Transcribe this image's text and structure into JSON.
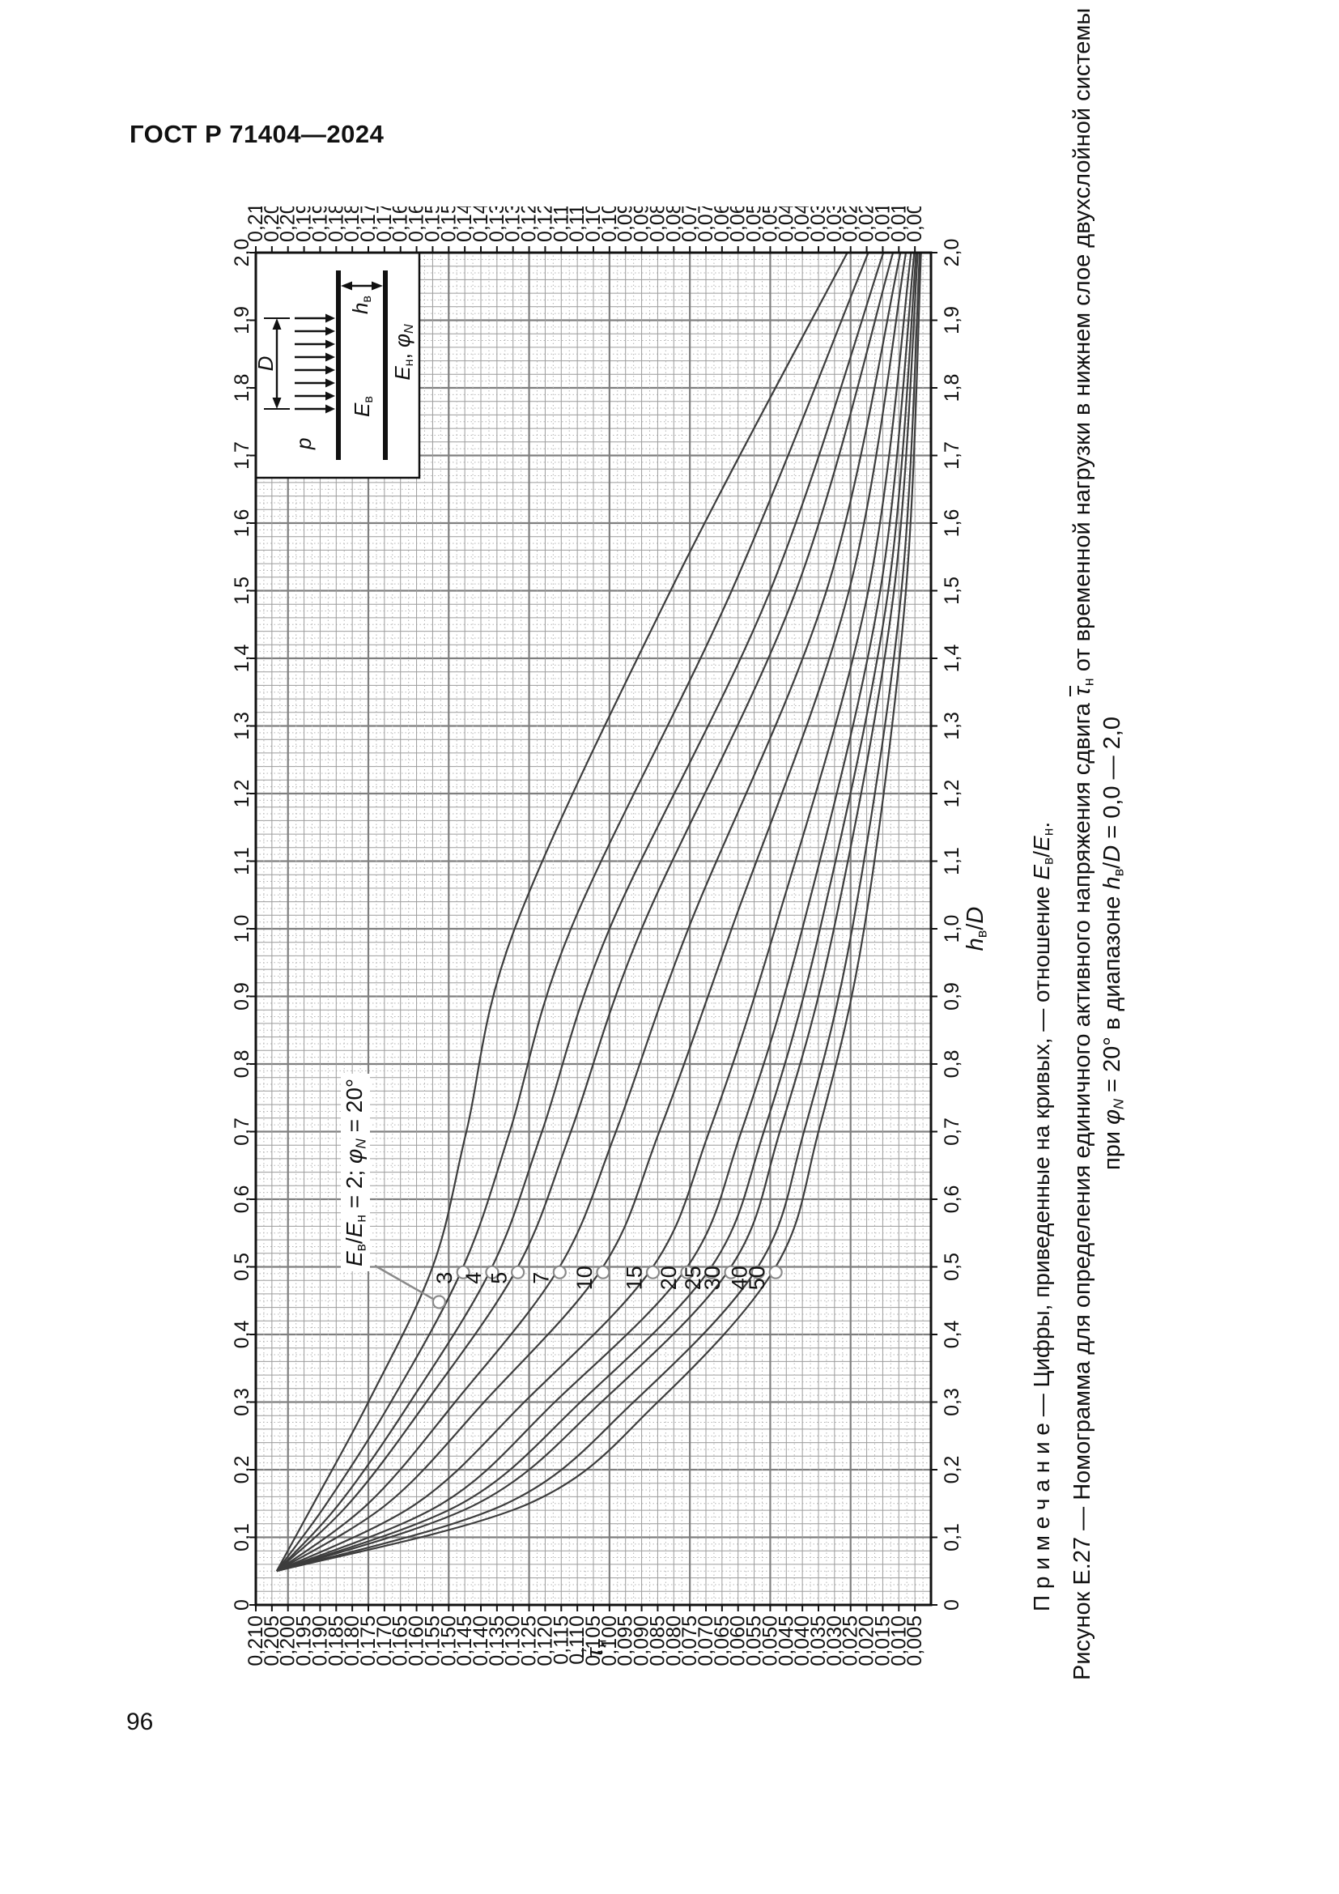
{
  "page": {
    "header": "ГОСТ Р 71404—2024",
    "page_number": "96"
  },
  "chart_data": {
    "type": "line",
    "title": "Рисунок Е.27 — Номограмма для определения единичного активного напряжения сдвига в нижнем слое двухслойной системы",
    "orientation_on_page": "rotated 90deg counterclockwise",
    "x_axis": {
      "label": "hв/D",
      "range": [
        0,
        2.0
      ],
      "tick_step": 0.1,
      "tick_labels": [
        "0",
        "0,1",
        "0,2",
        "0,3",
        "0,4",
        "0,5",
        "0,6",
        "0,7",
        "0,8",
        "0,9",
        "1,0",
        "1,1",
        "1,2",
        "1,3",
        "1,4",
        "1,5",
        "1,6",
        "1,7",
        "1,8",
        "1,9",
        "2,0"
      ],
      "title_segments": [
        {
          "t": "h",
          "i": true
        },
        {
          "t": "в",
          "s": true
        },
        {
          "t": "/"
        },
        {
          "t": "D",
          "i": true
        }
      ]
    },
    "y_axis": {
      "label": "τ̄н",
      "range": [
        0,
        0.21
      ],
      "tick_step": 0.005,
      "tick_min": 0.005,
      "tick_max": 0.21,
      "title_segments": [
        {
          "t": "τ",
          "i": true,
          "o": true
        },
        {
          "t": "н",
          "s": true
        }
      ]
    },
    "legend_note": "Цифры, приведенные на кривых, — отношение Eв/Eн",
    "h_samples": [
      0.05,
      0.15,
      0.3,
      0.5,
      0.7,
      1.0,
      1.5,
      2.0
    ],
    "series": [
      {
        "name": "2",
        "labeled": false,
        "values": [
          0.2035,
          0.192,
          0.175,
          0.155,
          0.1445,
          0.1295,
          0.081,
          0.026
        ]
      },
      {
        "name": "3",
        "labeled": true,
        "values": [
          0.2035,
          0.188,
          0.168,
          0.1455,
          0.131,
          0.112,
          0.062,
          0.0195
        ]
      },
      {
        "name": "4",
        "labeled": true,
        "values": [
          0.2035,
          0.184,
          0.162,
          0.1365,
          0.121,
          0.1,
          0.05,
          0.0148
        ]
      },
      {
        "name": "5",
        "labeled": true,
        "values": [
          0.2035,
          0.181,
          0.157,
          0.1285,
          0.112,
          0.09,
          0.042,
          0.0118
        ]
      },
      {
        "name": "7",
        "labeled": true,
        "values": [
          0.2035,
          0.175,
          0.148,
          0.1155,
          0.098,
          0.0755,
          0.0325,
          0.0095
        ]
      },
      {
        "name": "10",
        "labeled": true,
        "values": [
          0.2035,
          0.169,
          0.139,
          0.102,
          0.0845,
          0.062,
          0.0255,
          0.0078
        ]
      },
      {
        "name": "15",
        "labeled": true,
        "values": [
          0.2035,
          0.16,
          0.1265,
          0.0865,
          0.069,
          0.0485,
          0.0195,
          0.0062
        ]
      },
      {
        "name": "20",
        "labeled": true,
        "values": [
          0.2035,
          0.152,
          0.117,
          0.0758,
          0.059,
          0.04,
          0.0158,
          0.0052
        ]
      },
      {
        "name": "25",
        "labeled": true,
        "values": [
          0.2035,
          0.146,
          0.109,
          0.0683,
          0.052,
          0.0345,
          0.0133,
          0.0046
        ]
      },
      {
        "name": "30",
        "labeled": true,
        "values": [
          0.2035,
          0.141,
          0.1025,
          0.0622,
          0.047,
          0.0302,
          0.0115,
          0.0041
        ]
      },
      {
        "name": "40",
        "labeled": true,
        "values": [
          0.2035,
          0.132,
          0.0925,
          0.0538,
          0.0395,
          0.0245,
          0.0092,
          0.0035
        ]
      },
      {
        "name": "50",
        "labeled": true,
        "values": [
          0.2035,
          0.125,
          0.085,
          0.0483,
          0.035,
          0.0208,
          0.0078,
          0.0031
        ]
      }
    ],
    "marker_h": 0.492,
    "annotation": {
      "text": "Eв/Eн = 2; φN = 20°",
      "segments": [
        {
          "t": "E",
          "i": true
        },
        {
          "t": "в",
          "s": true
        },
        {
          "t": "/"
        },
        {
          "t": "E",
          "i": true
        },
        {
          "t": "н",
          "s": true
        },
        {
          "t": " = 2; "
        },
        {
          "t": "φ",
          "i": true
        },
        {
          "t": "N",
          "i": true,
          "s": true
        },
        {
          "t": " = 20°"
        }
      ],
      "target": {
        "h": 0.448,
        "tau": 0.153
      }
    },
    "note_segments": [
      {
        "t": "П р и м е ч а н и е — Цифры, приведенные на кривых, — отношение "
      },
      {
        "t": "E",
        "i": true
      },
      {
        "t": "в",
        "s": true
      },
      {
        "t": "/"
      },
      {
        "t": "E",
        "i": true
      },
      {
        "t": "н",
        "s": true
      },
      {
        "t": "."
      }
    ],
    "caption_line1_segments": [
      {
        "t": "Рисунок Е.27 — Номограмма для определения единичного активного напряжения сдвига "
      },
      {
        "t": "τ",
        "i": true,
        "o": true
      },
      {
        "t": "н",
        "s": true
      },
      {
        "t": " от временной нагрузки в нижнем слое двухслойной системы"
      }
    ],
    "caption_line2_segments": [
      {
        "t": "при "
      },
      {
        "t": "φ",
        "i": true
      },
      {
        "t": "N",
        "i": true,
        "s": true
      },
      {
        "t": " = 20° в диапазоне "
      },
      {
        "t": "h",
        "i": true
      },
      {
        "t": "в",
        "s": true
      },
      {
        "t": "/"
      },
      {
        "t": "D",
        "i": true
      },
      {
        "t": " = 0,0 — 2,0"
      }
    ],
    "inset": {
      "p": [
        {
          "t": "p",
          "i": true
        }
      ],
      "D": [
        {
          "t": "D",
          "i": true
        }
      ],
      "E_upper": [
        {
          "t": "E",
          "i": true
        },
        {
          "t": "в",
          "s": true
        }
      ],
      "h_thickness": [
        {
          "t": "h",
          "i": true
        },
        {
          "t": "в",
          "s": true
        }
      ],
      "E_lower": [
        {
          "t": "E",
          "i": true
        },
        {
          "t": "н",
          "s": true
        },
        {
          "t": ", "
        },
        {
          "t": "φ",
          "i": true
        },
        {
          "t": "N",
          "i": true,
          "s": true
        }
      ]
    },
    "colors": {
      "curve": "#3d3d3d",
      "grid_minor": "#b5b5b5",
      "grid_mid": "#9c9c9c",
      "grid_major": "#7f7f7f",
      "frame": "#111111",
      "marker": "#8a8a8a"
    }
  }
}
